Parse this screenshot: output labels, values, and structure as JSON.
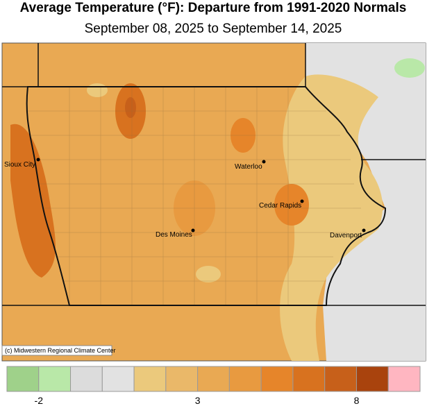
{
  "title": "Average Temperature (°F): Departure from 1991-2020 Normals",
  "subtitle": "September 08, 2025 to September 14, 2025",
  "credit": "(c) Midwestern Regional Climate Center",
  "cities": [
    "Sioux City",
    "Waterloo",
    "Cedar Rapids",
    "Des Moines",
    "Davenport"
  ],
  "legend": {
    "colors": [
      "#9fd18a",
      "#b9e8a8",
      "#dcdcdc",
      "#e2e2e2",
      "#ebc97c",
      "#eab869",
      "#e9a953",
      "#e89a40",
      "#e6852a",
      "#d8721f",
      "#c7601a",
      "#a9430d",
      "#ffb6c1"
    ],
    "lim": [
      -3,
      10
    ],
    "ticks": [
      -2,
      3,
      8
    ]
  }
}
